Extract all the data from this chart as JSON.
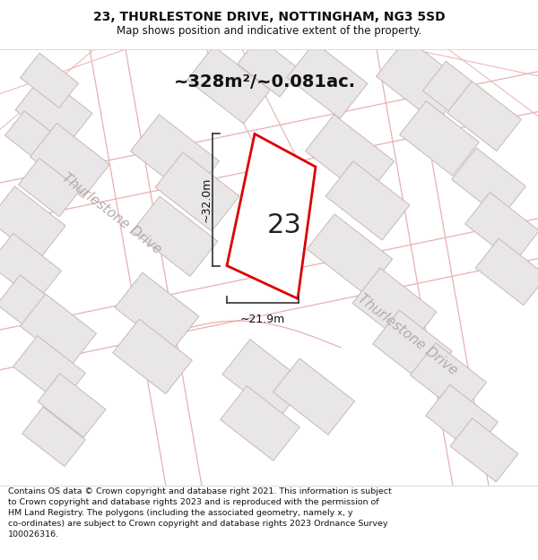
{
  "title": "23, THURLESTONE DRIVE, NOTTINGHAM, NG3 5SD",
  "subtitle": "Map shows position and indicative extent of the property.",
  "footer": "Contains OS data © Crown copyright and database right 2021. This information is subject to Crown copyright and database rights 2023 and is reproduced with the permission of HM Land Registry. The polygons (including the associated geometry, namely x, y co-ordinates) are subject to Crown copyright and database rights 2023 Ordnance Survey 100026316.",
  "area_label": "~328m²/~0.081ac.",
  "width_label": "~21.9m",
  "height_label": "~32.0m",
  "number_label": "23",
  "map_bg": "#f7f5f5",
  "building_fill": "#e8e6e6",
  "building_edge": "#c8b8b8",
  "highlight_fill": "#ffffff",
  "highlight_edge": "#dd0000",
  "road_line_color": "#e8b0b0",
  "road_label_color": "#b8a8a8",
  "dim_color": "#333333",
  "title_fontsize": 10,
  "subtitle_fontsize": 8.5,
  "footer_fontsize": 6.8,
  "area_fontsize": 14,
  "number_fontsize": 22,
  "road_fontsize": 11,
  "dim_fontsize": 9
}
